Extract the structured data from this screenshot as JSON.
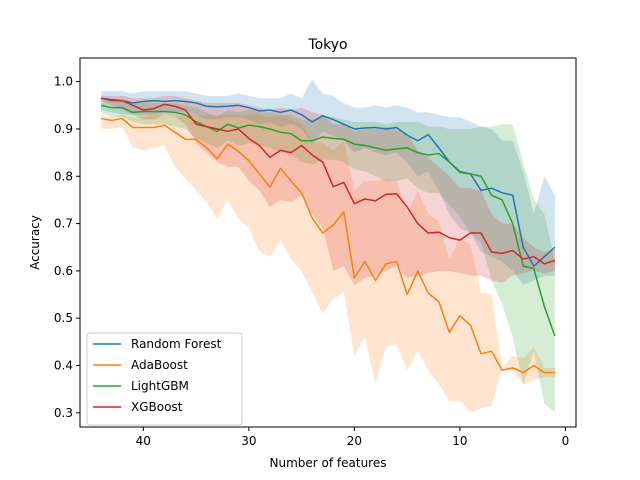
{
  "chart_data": {
    "type": "line",
    "title": "Tokyo",
    "xlabel": "Number of features",
    "ylabel": "Accuracy",
    "xlim": [
      46,
      -1
    ],
    "ylim": [
      0.27,
      1.05
    ],
    "x_ticks": [
      40,
      30,
      20,
      10,
      0
    ],
    "y_ticks": [
      0.3,
      0.4,
      0.5,
      0.6,
      0.7,
      0.8,
      0.9,
      1.0
    ],
    "x_tick_labels": [
      "40",
      "30",
      "20",
      "10",
      "0"
    ],
    "y_tick_labels": [
      "0.3",
      "0.4",
      "0.5",
      "0.6",
      "0.7",
      "0.8",
      "0.9",
      "1.0"
    ],
    "legend_position": "lower-left",
    "grid": false,
    "x": [
      44,
      43,
      42,
      41,
      40,
      39,
      38,
      37,
      36,
      35,
      34,
      33,
      32,
      31,
      30,
      29,
      28,
      27,
      26,
      25,
      24,
      23,
      22,
      21,
      20,
      19,
      18,
      17,
      16,
      15,
      14,
      13,
      12,
      11,
      10,
      9,
      8,
      7,
      6,
      5,
      4,
      3,
      2,
      1
    ],
    "series": [
      {
        "name": "Random Forest",
        "color": "#1f77b4",
        "values": [
          0.965,
          0.962,
          0.96,
          0.955,
          0.958,
          0.96,
          0.958,
          0.96,
          0.958,
          0.955,
          0.948,
          0.947,
          0.948,
          0.95,
          0.945,
          0.938,
          0.94,
          0.935,
          0.94,
          0.93,
          0.915,
          0.928,
          0.92,
          0.91,
          0.9,
          0.902,
          0.903,
          0.9,
          0.903,
          0.887,
          0.875,
          0.888,
          0.86,
          0.83,
          0.81,
          0.805,
          0.77,
          0.775,
          0.765,
          0.76,
          0.65,
          0.61,
          0.63,
          0.65
        ],
        "lower": [
          0.94,
          0.935,
          0.93,
          0.93,
          0.93,
          0.93,
          0.935,
          0.935,
          0.935,
          0.93,
          0.92,
          0.92,
          0.925,
          0.925,
          0.92,
          0.91,
          0.915,
          0.905,
          0.91,
          0.9,
          0.87,
          0.895,
          0.885,
          0.875,
          0.85,
          0.86,
          0.85,
          0.845,
          0.85,
          0.83,
          0.8,
          0.81,
          0.77,
          0.72,
          0.69,
          0.68,
          0.64,
          0.63,
          0.62,
          0.6,
          0.57,
          0.58,
          0.59,
          0.59
        ],
        "upper": [
          0.98,
          0.98,
          0.98,
          0.975,
          0.98,
          0.98,
          0.98,
          0.98,
          0.98,
          0.975,
          0.97,
          0.97,
          0.97,
          0.975,
          0.97,
          0.965,
          0.965,
          0.965,
          0.975,
          0.965,
          1.005,
          0.975,
          0.97,
          0.955,
          0.945,
          0.945,
          0.95,
          0.945,
          0.95,
          0.945,
          0.935,
          0.935,
          0.93,
          0.925,
          0.925,
          0.915,
          0.905,
          0.9,
          0.875,
          0.875,
          0.81,
          0.72,
          0.8,
          0.76
        ]
      },
      {
        "name": "AdaBoost",
        "color": "#ff7f0e",
        "values": [
          0.922,
          0.918,
          0.922,
          0.903,
          0.903,
          0.903,
          0.908,
          0.893,
          0.878,
          0.878,
          0.86,
          0.837,
          0.868,
          0.853,
          0.833,
          0.805,
          0.777,
          0.817,
          0.79,
          0.765,
          0.712,
          0.68,
          0.697,
          0.725,
          0.585,
          0.62,
          0.58,
          0.615,
          0.62,
          0.55,
          0.6,
          0.553,
          0.535,
          0.47,
          0.505,
          0.485,
          0.425,
          0.43,
          0.39,
          0.395,
          0.385,
          0.4,
          0.385,
          0.385
        ],
        "lower": [
          0.9,
          0.9,
          0.905,
          0.86,
          0.855,
          0.86,
          0.865,
          0.82,
          0.795,
          0.77,
          0.745,
          0.71,
          0.75,
          0.71,
          0.69,
          0.64,
          0.63,
          0.665,
          0.625,
          0.6,
          0.555,
          0.51,
          0.54,
          0.555,
          0.42,
          0.46,
          0.36,
          0.44,
          0.445,
          0.39,
          0.43,
          0.39,
          0.36,
          0.325,
          0.325,
          0.3,
          0.31,
          0.315,
          0.395,
          0.39,
          0.36,
          0.37,
          0.375,
          0.375
        ],
        "upper": [
          0.93,
          0.925,
          0.93,
          0.925,
          0.925,
          0.93,
          0.93,
          0.925,
          0.93,
          0.93,
          0.93,
          0.93,
          0.93,
          0.93,
          0.93,
          0.93,
          0.925,
          0.93,
          0.92,
          0.91,
          0.875,
          0.87,
          0.855,
          0.875,
          0.77,
          0.79,
          0.79,
          0.795,
          0.79,
          0.72,
          0.77,
          0.72,
          0.705,
          0.625,
          0.67,
          0.655,
          0.555,
          0.55,
          0.395,
          0.42,
          0.415,
          0.44,
          0.395,
          0.395
        ]
      },
      {
        "name": "LightGBM",
        "color": "#2ca02c",
        "values": [
          0.95,
          0.945,
          0.945,
          0.935,
          0.937,
          0.937,
          0.937,
          0.935,
          0.93,
          0.915,
          0.905,
          0.895,
          0.91,
          0.902,
          0.908,
          0.905,
          0.9,
          0.893,
          0.89,
          0.875,
          0.875,
          0.883,
          0.88,
          0.878,
          0.868,
          0.865,
          0.86,
          0.855,
          0.858,
          0.86,
          0.85,
          0.845,
          0.848,
          0.83,
          0.808,
          0.805,
          0.8,
          0.76,
          0.75,
          0.7,
          0.61,
          0.605,
          0.525,
          0.462
        ],
        "lower": [
          0.935,
          0.925,
          0.925,
          0.915,
          0.91,
          0.91,
          0.91,
          0.905,
          0.9,
          0.88,
          0.87,
          0.86,
          0.875,
          0.865,
          0.87,
          0.865,
          0.86,
          0.85,
          0.845,
          0.83,
          0.825,
          0.835,
          0.835,
          0.83,
          0.815,
          0.81,
          0.8,
          0.79,
          0.79,
          0.795,
          0.775,
          0.765,
          0.765,
          0.74,
          0.715,
          0.68,
          0.66,
          0.58,
          0.53,
          0.46,
          0.36,
          0.43,
          0.32,
          0.3
        ],
        "upper": [
          0.96,
          0.96,
          0.96,
          0.955,
          0.955,
          0.955,
          0.955,
          0.955,
          0.95,
          0.945,
          0.935,
          0.925,
          0.94,
          0.935,
          0.94,
          0.935,
          0.935,
          0.93,
          0.93,
          0.92,
          0.92,
          0.925,
          0.925,
          0.92,
          0.915,
          0.915,
          0.915,
          0.91,
          0.915,
          0.915,
          0.915,
          0.905,
          0.905,
          0.9,
          0.9,
          0.9,
          0.905,
          0.905,
          0.91,
          0.91,
          0.83,
          0.75,
          0.72,
          0.62
        ]
      },
      {
        "name": "XGBoost",
        "color": "#d62728",
        "values": [
          0.965,
          0.96,
          0.96,
          0.95,
          0.94,
          0.943,
          0.952,
          0.948,
          0.94,
          0.91,
          0.905,
          0.9,
          0.895,
          0.9,
          0.88,
          0.865,
          0.84,
          0.855,
          0.85,
          0.865,
          0.845,
          0.83,
          0.778,
          0.787,
          0.742,
          0.752,
          0.748,
          0.762,
          0.763,
          0.735,
          0.7,
          0.68,
          0.682,
          0.67,
          0.665,
          0.68,
          0.68,
          0.64,
          0.637,
          0.643,
          0.625,
          0.63,
          0.615,
          0.622
        ],
        "lower": [
          0.96,
          0.95,
          0.94,
          0.93,
          0.92,
          0.92,
          0.93,
          0.925,
          0.91,
          0.87,
          0.85,
          0.83,
          0.82,
          0.82,
          0.79,
          0.77,
          0.735,
          0.75,
          0.745,
          0.76,
          0.72,
          0.69,
          0.6,
          0.61,
          0.57,
          0.585,
          0.59,
          0.6,
          0.61,
          0.585,
          0.59,
          0.595,
          0.6,
          0.6,
          0.595,
          0.59,
          0.59,
          0.58,
          0.575,
          0.59,
          0.595,
          0.6,
          0.595,
          0.6
        ],
        "upper": [
          0.97,
          0.97,
          0.97,
          0.965,
          0.965,
          0.965,
          0.97,
          0.97,
          0.965,
          0.96,
          0.955,
          0.955,
          0.955,
          0.955,
          0.95,
          0.945,
          0.94,
          0.945,
          0.94,
          0.945,
          0.935,
          0.93,
          0.91,
          0.91,
          0.895,
          0.9,
          0.9,
          0.905,
          0.9,
          0.89,
          0.855,
          0.84,
          0.82,
          0.8,
          0.775,
          0.775,
          0.77,
          0.72,
          0.7,
          0.7,
          0.67,
          0.65,
          0.64,
          0.645
        ]
      }
    ]
  }
}
